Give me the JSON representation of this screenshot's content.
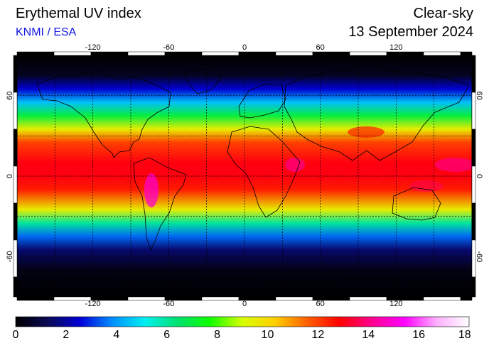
{
  "header": {
    "title": "Erythemal UV index",
    "credit": "KNMI / ESA",
    "mode": "Clear-sky",
    "date": "13 September 2024"
  },
  "map": {
    "projection": "equirectangular",
    "lon_range": [
      -180,
      180
    ],
    "lat_range": [
      -90,
      90
    ],
    "grid_step_deg": 30,
    "lon_tick_labels": [
      "-120",
      "-60",
      "0",
      "60",
      "120"
    ],
    "lat_tick_labels": [
      "60",
      "0",
      "-60"
    ],
    "quantity": "erythemal UV index",
    "zonal_profile": [
      {
        "lat": 90,
        "uvi": 0
      },
      {
        "lat": 75,
        "uvi": 0.5
      },
      {
        "lat": 65,
        "uvi": 2.5
      },
      {
        "lat": 55,
        "uvi": 4.5
      },
      {
        "lat": 45,
        "uvi": 7
      },
      {
        "lat": 35,
        "uvi": 9.5
      },
      {
        "lat": 25,
        "uvi": 12
      },
      {
        "lat": 10,
        "uvi": 13
      },
      {
        "lat": 0,
        "uvi": 13
      },
      {
        "lat": -10,
        "uvi": 12.5
      },
      {
        "lat": -25,
        "uvi": 9.5
      },
      {
        "lat": -35,
        "uvi": 6
      },
      {
        "lat": -45,
        "uvi": 3.5
      },
      {
        "lat": -55,
        "uvi": 1.5
      },
      {
        "lat": -70,
        "uvi": 0.3
      },
      {
        "lat": -90,
        "uvi": 0
      }
    ]
  },
  "colorbar": {
    "min": 0,
    "max": 18,
    "tick_labels": [
      "0",
      "2",
      "4",
      "6",
      "8",
      "10",
      "12",
      "14",
      "16",
      "18"
    ],
    "colors": [
      "#000000",
      "#0a0a55",
      "#0000d8",
      "#0090ff",
      "#00f0f0",
      "#00e070",
      "#10ff00",
      "#d8ff00",
      "#ffd000",
      "#ff6000",
      "#ff0000",
      "#ff0090",
      "#ff00ff",
      "#ffb0ff",
      "#ffffff"
    ]
  }
}
